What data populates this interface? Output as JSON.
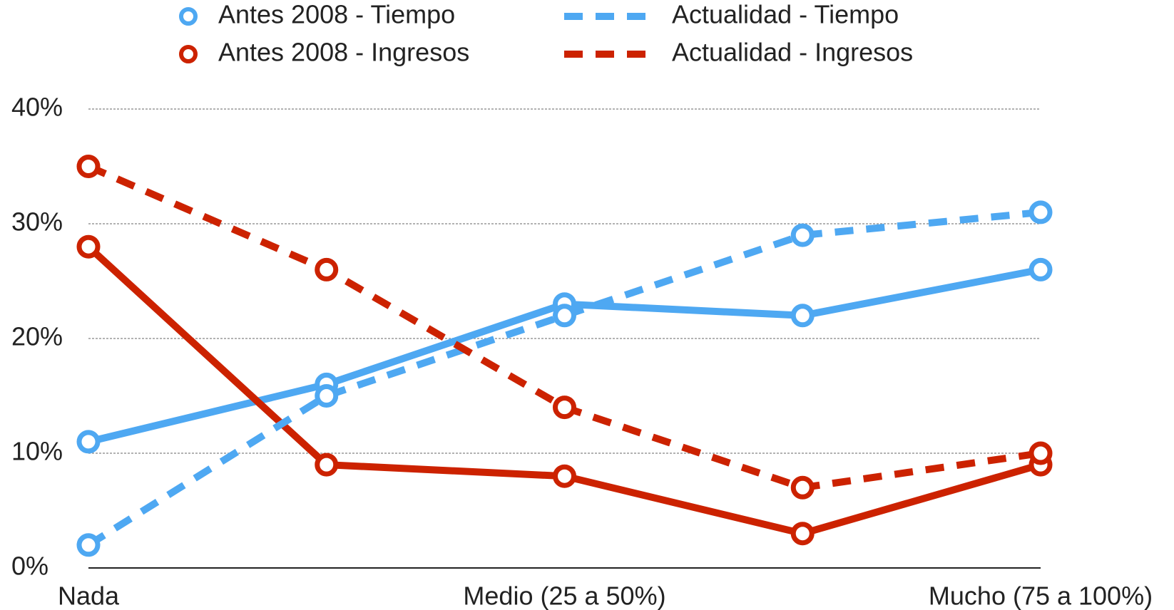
{
  "chart_data": {
    "type": "line",
    "categories": [
      "Nada",
      null,
      "Medio (25 a 50%)",
      null,
      "Mucho (75 a 100%)"
    ],
    "series": [
      {
        "name": "Antes 2008 - Tiempo",
        "color": "#4ea8f2",
        "line_style": "solid",
        "values": [
          11,
          16,
          23,
          22,
          26
        ]
      },
      {
        "name": "Antes 2008 - Ingresos",
        "color": "#cc2200",
        "line_style": "solid",
        "values": [
          28,
          9,
          8,
          3,
          9
        ]
      },
      {
        "name": "Actualidad - Tiempo",
        "color": "#4ea8f2",
        "line_style": "dashed",
        "values": [
          2,
          15,
          22,
          29,
          31
        ]
      },
      {
        "name": "Actualidad - Ingresos",
        "color": "#cc2200",
        "line_style": "dashed",
        "values": [
          35,
          26,
          14,
          7,
          10
        ]
      }
    ],
    "ylim": [
      0,
      40
    ],
    "yticks": [
      {
        "value": 0,
        "label": "0%"
      },
      {
        "value": 10,
        "label": "10%"
      },
      {
        "value": 20,
        "label": "20%"
      },
      {
        "value": 30,
        "label": "30%"
      },
      {
        "value": 40,
        "label": "40%"
      }
    ],
    "grid": true
  }
}
